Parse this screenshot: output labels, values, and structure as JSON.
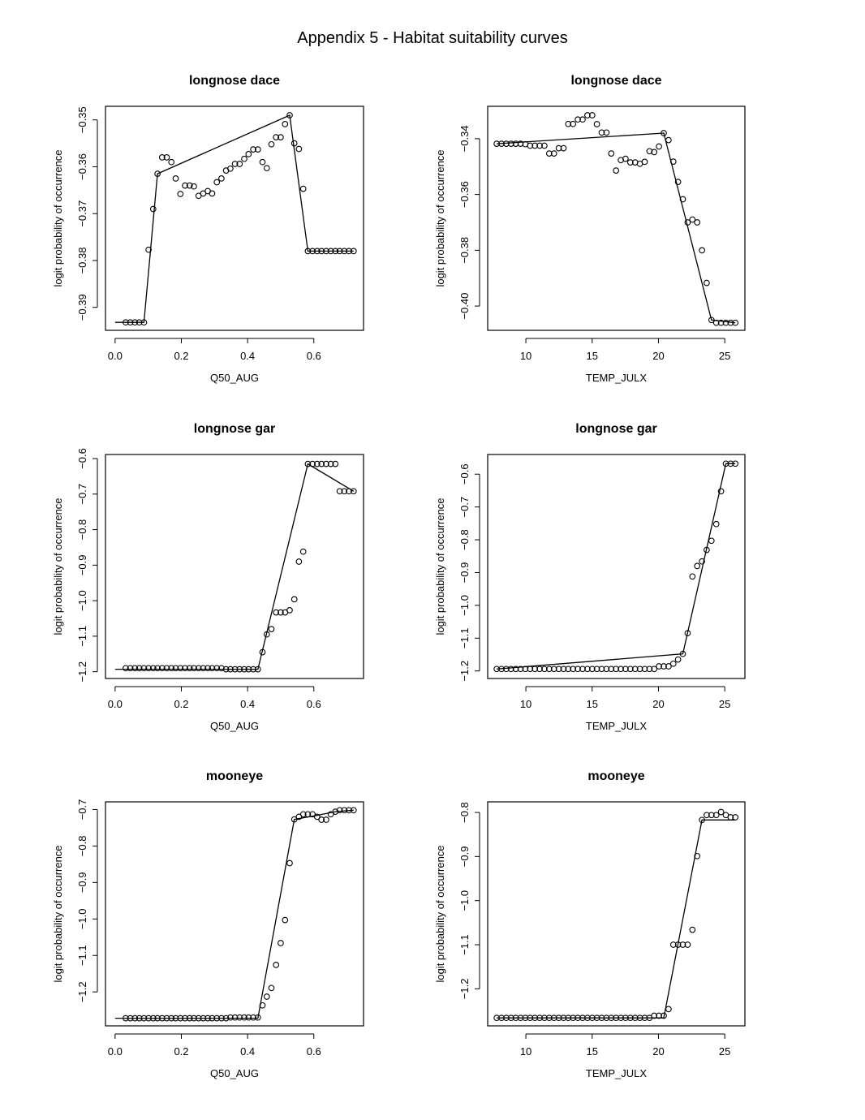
{
  "page": {
    "title": "Appendix 5 - Habitat suitability curves"
  },
  "chart_data": [
    {
      "type": "scatter",
      "title": "longnose dace",
      "xlabel": "Q50_AUG",
      "ylabel": "logit probability of occurrence",
      "xlim": [
        -0.029,
        0.75
      ],
      "ylim": [
        -0.3949,
        -0.3471
      ],
      "xticks": [
        0.0,
        0.2,
        0.4,
        0.6
      ],
      "xtick_labels": [
        "0.0",
        "0.2",
        "0.4",
        "0.6"
      ],
      "yticks": [
        -0.39,
        -0.38,
        -0.37,
        -0.36,
        -0.35
      ],
      "ytick_labels": [
        "-0.39",
        "-0.38",
        "-0.37",
        "-0.36",
        "-0.35"
      ],
      "grid": false,
      "points": {
        "x": [
          0.032,
          0.046,
          0.06,
          0.073,
          0.087,
          0.101,
          0.115,
          0.128,
          0.142,
          0.156,
          0.17,
          0.183,
          0.197,
          0.211,
          0.225,
          0.238,
          0.252,
          0.266,
          0.28,
          0.293,
          0.307,
          0.321,
          0.335,
          0.348,
          0.362,
          0.376,
          0.39,
          0.403,
          0.417,
          0.431,
          0.445,
          0.458,
          0.472,
          0.486,
          0.5,
          0.513,
          0.527,
          0.541,
          0.555,
          0.568,
          0.582,
          0.596,
          0.61,
          0.623,
          0.637,
          0.651,
          0.665,
          0.678,
          0.692,
          0.706,
          0.72
        ],
        "y": [
          -0.3932,
          -0.3932,
          -0.3932,
          -0.3932,
          -0.3932,
          -0.3777,
          -0.369,
          -0.3615,
          -0.358,
          -0.358,
          -0.359,
          -0.3625,
          -0.3658,
          -0.364,
          -0.364,
          -0.3642,
          -0.3662,
          -0.3657,
          -0.3652,
          -0.3657,
          -0.3633,
          -0.3625,
          -0.3608,
          -0.3604,
          -0.3594,
          -0.3594,
          -0.3583,
          -0.3573,
          -0.3563,
          -0.3563,
          -0.359,
          -0.3603,
          -0.3552,
          -0.3537,
          -0.3537,
          -0.3509,
          -0.349,
          -0.355,
          -0.3562,
          -0.3647,
          -0.378,
          -0.378,
          -0.378,
          -0.378,
          -0.378,
          -0.378,
          -0.378,
          -0.378,
          -0.378,
          -0.378,
          -0.378
        ]
      },
      "line": {
        "x": [
          0.0,
          0.087,
          0.128,
          0.527,
          0.582,
          0.72
        ],
        "y": [
          -0.3932,
          -0.3932,
          -0.3615,
          -0.349,
          -0.378,
          -0.378
        ]
      }
    },
    {
      "type": "scatter",
      "title": "longnose dace",
      "xlabel": "TEMP_JULX",
      "ylabel": "logit probability of occurrence",
      "xlim": [
        7.12,
        26.52
      ],
      "ylim": [
        -0.4087,
        -0.3284
      ],
      "xticks": [
        10,
        15,
        20,
        25
      ],
      "xtick_labels": [
        "10",
        "15",
        "20",
        "25"
      ],
      "yticks": [
        -0.4,
        -0.38,
        -0.36,
        -0.34
      ],
      "ytick_labels": [
        "-0.40",
        "-0.38",
        "-0.36",
        "-0.34"
      ],
      "grid": false,
      "points": {
        "x": [
          7.8,
          8.16,
          8.52,
          8.88,
          9.24,
          9.6,
          9.96,
          10.32,
          10.68,
          11.04,
          11.4,
          11.76,
          12.12,
          12.48,
          12.84,
          13.2,
          13.56,
          13.92,
          14.28,
          14.64,
          15.0,
          15.36,
          15.72,
          16.08,
          16.44,
          16.8,
          17.16,
          17.52,
          17.88,
          18.24,
          18.6,
          18.96,
          19.32,
          19.68,
          20.04,
          20.4,
          20.76,
          21.12,
          21.48,
          21.84,
          22.2,
          22.56,
          22.92,
          23.28,
          23.64,
          24.0,
          24.36,
          24.72,
          25.08,
          25.44,
          25.8
        ],
        "y": [
          -0.3418,
          -0.3418,
          -0.3418,
          -0.3418,
          -0.3418,
          -0.3418,
          -0.342,
          -0.3425,
          -0.3425,
          -0.3425,
          -0.3425,
          -0.3453,
          -0.3453,
          -0.3434,
          -0.3434,
          -0.3347,
          -0.3347,
          -0.3331,
          -0.3331,
          -0.3316,
          -0.3316,
          -0.3348,
          -0.3378,
          -0.3378,
          -0.3453,
          -0.3514,
          -0.3477,
          -0.3472,
          -0.3485,
          -0.3485,
          -0.349,
          -0.3483,
          -0.3445,
          -0.3448,
          -0.3428,
          -0.338,
          -0.3405,
          -0.3482,
          -0.3555,
          -0.3617,
          -0.37,
          -0.369,
          -0.37,
          -0.38,
          -0.3917,
          -0.405,
          -0.406,
          -0.406,
          -0.406,
          -0.406,
          -0.406
        ]
      },
      "line": {
        "x": [
          7.8,
          20.4,
          24.0,
          25.8
        ],
        "y": [
          -0.3418,
          -0.338,
          -0.405,
          -0.406
        ]
      }
    },
    {
      "type": "scatter",
      "title": "longnose gar",
      "xlabel": "Q50_AUG",
      "ylabel": "logit probability of occurrence",
      "xlim": [
        -0.029,
        0.75
      ],
      "ylim": [
        -1.219,
        -0.5886
      ],
      "xticks": [
        0.0,
        0.2,
        0.4,
        0.6
      ],
      "xtick_labels": [
        "0.0",
        "0.2",
        "0.4",
        "0.6"
      ],
      "yticks": [
        -1.2,
        -1.1,
        -1.0,
        -0.9,
        -0.8,
        -0.7,
        -0.6
      ],
      "ytick_labels": [
        "-1.2",
        "-1.1",
        "-1.0",
        "-0.9",
        "-0.8",
        "-0.7",
        "-0.6"
      ],
      "grid": false,
      "points": {
        "x": [
          0.032,
          0.046,
          0.06,
          0.073,
          0.087,
          0.101,
          0.115,
          0.128,
          0.142,
          0.156,
          0.17,
          0.183,
          0.197,
          0.211,
          0.225,
          0.238,
          0.252,
          0.266,
          0.28,
          0.293,
          0.307,
          0.321,
          0.335,
          0.348,
          0.362,
          0.376,
          0.39,
          0.403,
          0.417,
          0.431,
          0.445,
          0.458,
          0.472,
          0.486,
          0.5,
          0.513,
          0.527,
          0.541,
          0.555,
          0.568,
          0.582,
          0.596,
          0.61,
          0.623,
          0.637,
          0.651,
          0.665,
          0.678,
          0.692,
          0.706,
          0.72
        ],
        "y": [
          -1.19,
          -1.19,
          -1.19,
          -1.19,
          -1.19,
          -1.19,
          -1.19,
          -1.19,
          -1.19,
          -1.19,
          -1.19,
          -1.19,
          -1.19,
          -1.19,
          -1.19,
          -1.19,
          -1.19,
          -1.19,
          -1.19,
          -1.19,
          -1.19,
          -1.19,
          -1.193,
          -1.193,
          -1.193,
          -1.193,
          -1.193,
          -1.193,
          -1.193,
          -1.193,
          -1.145,
          -1.095,
          -1.08,
          -1.033,
          -1.033,
          -1.033,
          -1.027,
          -0.996,
          -0.89,
          -0.862,
          -0.615,
          -0.615,
          -0.615,
          -0.615,
          -0.615,
          -0.615,
          -0.615,
          -0.692,
          -0.692,
          -0.692,
          -0.692
        ]
      },
      "line": {
        "x": [
          0.0,
          0.431,
          0.582,
          0.72
        ],
        "y": [
          -1.193,
          -1.193,
          -0.615,
          -0.692
        ]
      }
    },
    {
      "type": "scatter",
      "title": "longnose gar",
      "xlabel": "TEMP_JULX",
      "ylabel": "logit probability of occurrence",
      "xlim": [
        7.12,
        26.52
      ],
      "ylim": [
        -1.223,
        -0.54
      ],
      "xticks": [
        10,
        15,
        20,
        25
      ],
      "xtick_labels": [
        "10",
        "15",
        "20",
        "25"
      ],
      "yticks": [
        -1.2,
        -1.1,
        -1.0,
        -0.9,
        -0.8,
        -0.7,
        -0.6
      ],
      "ytick_labels": [
        "-1.2",
        "-1.1",
        "-1.0",
        "-0.9",
        "-0.8",
        "-0.7",
        "-0.6"
      ],
      "grid": false,
      "points": {
        "x": [
          7.8,
          8.16,
          8.52,
          8.88,
          9.24,
          9.6,
          9.96,
          10.32,
          10.68,
          11.04,
          11.4,
          11.76,
          12.12,
          12.48,
          12.84,
          13.2,
          13.56,
          13.92,
          14.28,
          14.64,
          15.0,
          15.36,
          15.72,
          16.08,
          16.44,
          16.8,
          17.16,
          17.52,
          17.88,
          18.24,
          18.6,
          18.96,
          19.32,
          19.68,
          20.04,
          20.4,
          20.76,
          21.12,
          21.48,
          21.84,
          22.2,
          22.56,
          22.92,
          23.28,
          23.64,
          24.0,
          24.36,
          24.72,
          25.08,
          25.44,
          25.8
        ],
        "y": [
          -1.194,
          -1.194,
          -1.194,
          -1.194,
          -1.194,
          -1.194,
          -1.194,
          -1.194,
          -1.194,
          -1.194,
          -1.194,
          -1.194,
          -1.194,
          -1.194,
          -1.194,
          -1.194,
          -1.194,
          -1.194,
          -1.194,
          -1.194,
          -1.194,
          -1.194,
          -1.194,
          -1.194,
          -1.194,
          -1.194,
          -1.194,
          -1.194,
          -1.194,
          -1.194,
          -1.194,
          -1.194,
          -1.194,
          -1.194,
          -1.186,
          -1.186,
          -1.186,
          -1.178,
          -1.165,
          -1.148,
          -1.085,
          -0.912,
          -0.88,
          -0.866,
          -0.831,
          -0.803,
          -0.752,
          -0.652,
          -0.568,
          -0.568,
          -0.568
        ]
      },
      "line": {
        "x": [
          7.8,
          21.84,
          25.08,
          25.8
        ],
        "y": [
          -1.194,
          -1.148,
          -0.568,
          -0.568
        ]
      }
    },
    {
      "type": "scatter",
      "title": "mooneye",
      "xlabel": "Q50_AUG",
      "ylabel": "logit probability of occurrence",
      "xlim": [
        -0.029,
        0.75
      ],
      "ylim": [
        -1.293,
        -0.679
      ],
      "xticks": [
        0.0,
        0.2,
        0.4,
        0.6
      ],
      "xtick_labels": [
        "0.0",
        "0.2",
        "0.4",
        "0.6"
      ],
      "yticks": [
        -1.2,
        -1.1,
        -1.0,
        -0.9,
        -0.8,
        -0.7
      ],
      "ytick_labels": [
        "-1.2",
        "-1.1",
        "-1.0",
        "-0.9",
        "-0.8",
        "-0.7"
      ],
      "grid": false,
      "points": {
        "x": [
          0.032,
          0.046,
          0.06,
          0.073,
          0.087,
          0.101,
          0.115,
          0.128,
          0.142,
          0.156,
          0.17,
          0.183,
          0.197,
          0.211,
          0.225,
          0.238,
          0.252,
          0.266,
          0.28,
          0.293,
          0.307,
          0.321,
          0.335,
          0.348,
          0.362,
          0.376,
          0.39,
          0.403,
          0.417,
          0.431,
          0.445,
          0.458,
          0.472,
          0.486,
          0.5,
          0.513,
          0.527,
          0.541,
          0.555,
          0.568,
          0.582,
          0.596,
          0.61,
          0.623,
          0.637,
          0.651,
          0.665,
          0.678,
          0.692,
          0.706,
          0.72
        ],
        "y": [
          -1.272,
          -1.272,
          -1.272,
          -1.272,
          -1.272,
          -1.272,
          -1.272,
          -1.272,
          -1.272,
          -1.272,
          -1.272,
          -1.272,
          -1.272,
          -1.272,
          -1.272,
          -1.272,
          -1.272,
          -1.272,
          -1.272,
          -1.272,
          -1.272,
          -1.272,
          -1.272,
          -1.27,
          -1.27,
          -1.27,
          -1.27,
          -1.27,
          -1.27,
          -1.27,
          -1.237,
          -1.213,
          -1.189,
          -1.126,
          -1.066,
          -1.003,
          -0.847,
          -0.727,
          -0.72,
          -0.713,
          -0.713,
          -0.713,
          -0.72,
          -0.728,
          -0.728,
          -0.713,
          -0.706,
          -0.702,
          -0.702,
          -0.702,
          -0.702
        ]
      },
      "line": {
        "x": [
          0.0,
          0.431,
          0.541,
          0.61,
          0.665,
          0.72
        ],
        "y": [
          -1.272,
          -1.272,
          -0.727,
          -0.716,
          -0.706,
          -0.702
        ]
      }
    },
    {
      "type": "scatter",
      "title": "mooneye",
      "xlabel": "TEMP_JULX",
      "ylabel": "logit probability of occurrence",
      "xlim": [
        7.12,
        26.52
      ],
      "ylim": [
        -1.284,
        -0.776
      ],
      "xticks": [
        10,
        15,
        20,
        25
      ],
      "xtick_labels": [
        "10",
        "15",
        "20",
        "25"
      ],
      "yticks": [
        -1.2,
        -1.1,
        -1.0,
        -0.9,
        -0.8
      ],
      "ytick_labels": [
        "-1.2",
        "-1.1",
        "-1.0",
        "-0.9",
        "-0.8"
      ],
      "grid": false,
      "points": {
        "x": [
          7.8,
          8.16,
          8.52,
          8.88,
          9.24,
          9.6,
          9.96,
          10.32,
          10.68,
          11.04,
          11.4,
          11.76,
          12.12,
          12.48,
          12.84,
          13.2,
          13.56,
          13.92,
          14.28,
          14.64,
          15.0,
          15.36,
          15.72,
          16.08,
          16.44,
          16.8,
          17.16,
          17.52,
          17.88,
          18.24,
          18.6,
          18.96,
          19.32,
          19.68,
          20.04,
          20.4,
          20.76,
          21.12,
          21.48,
          21.84,
          22.2,
          22.56,
          22.92,
          23.28,
          23.64,
          24.0,
          24.36,
          24.72,
          25.08,
          25.44,
          25.8
        ],
        "y": [
          -1.266,
          -1.266,
          -1.266,
          -1.266,
          -1.266,
          -1.266,
          -1.266,
          -1.266,
          -1.266,
          -1.266,
          -1.266,
          -1.266,
          -1.266,
          -1.266,
          -1.266,
          -1.266,
          -1.266,
          -1.266,
          -1.266,
          -1.266,
          -1.266,
          -1.266,
          -1.266,
          -1.266,
          -1.266,
          -1.266,
          -1.266,
          -1.266,
          -1.266,
          -1.266,
          -1.266,
          -1.266,
          -1.266,
          -1.261,
          -1.261,
          -1.261,
          -1.246,
          -1.1,
          -1.1,
          -1.1,
          -1.1,
          -1.066,
          -0.899,
          -0.817,
          -0.806,
          -0.806,
          -0.806,
          -0.799,
          -0.806,
          -0.811,
          -0.811
        ]
      },
      "line": {
        "x": [
          7.8,
          20.4,
          23.28,
          25.8
        ],
        "y": [
          -1.266,
          -1.266,
          -0.817,
          -0.817
        ]
      }
    }
  ]
}
